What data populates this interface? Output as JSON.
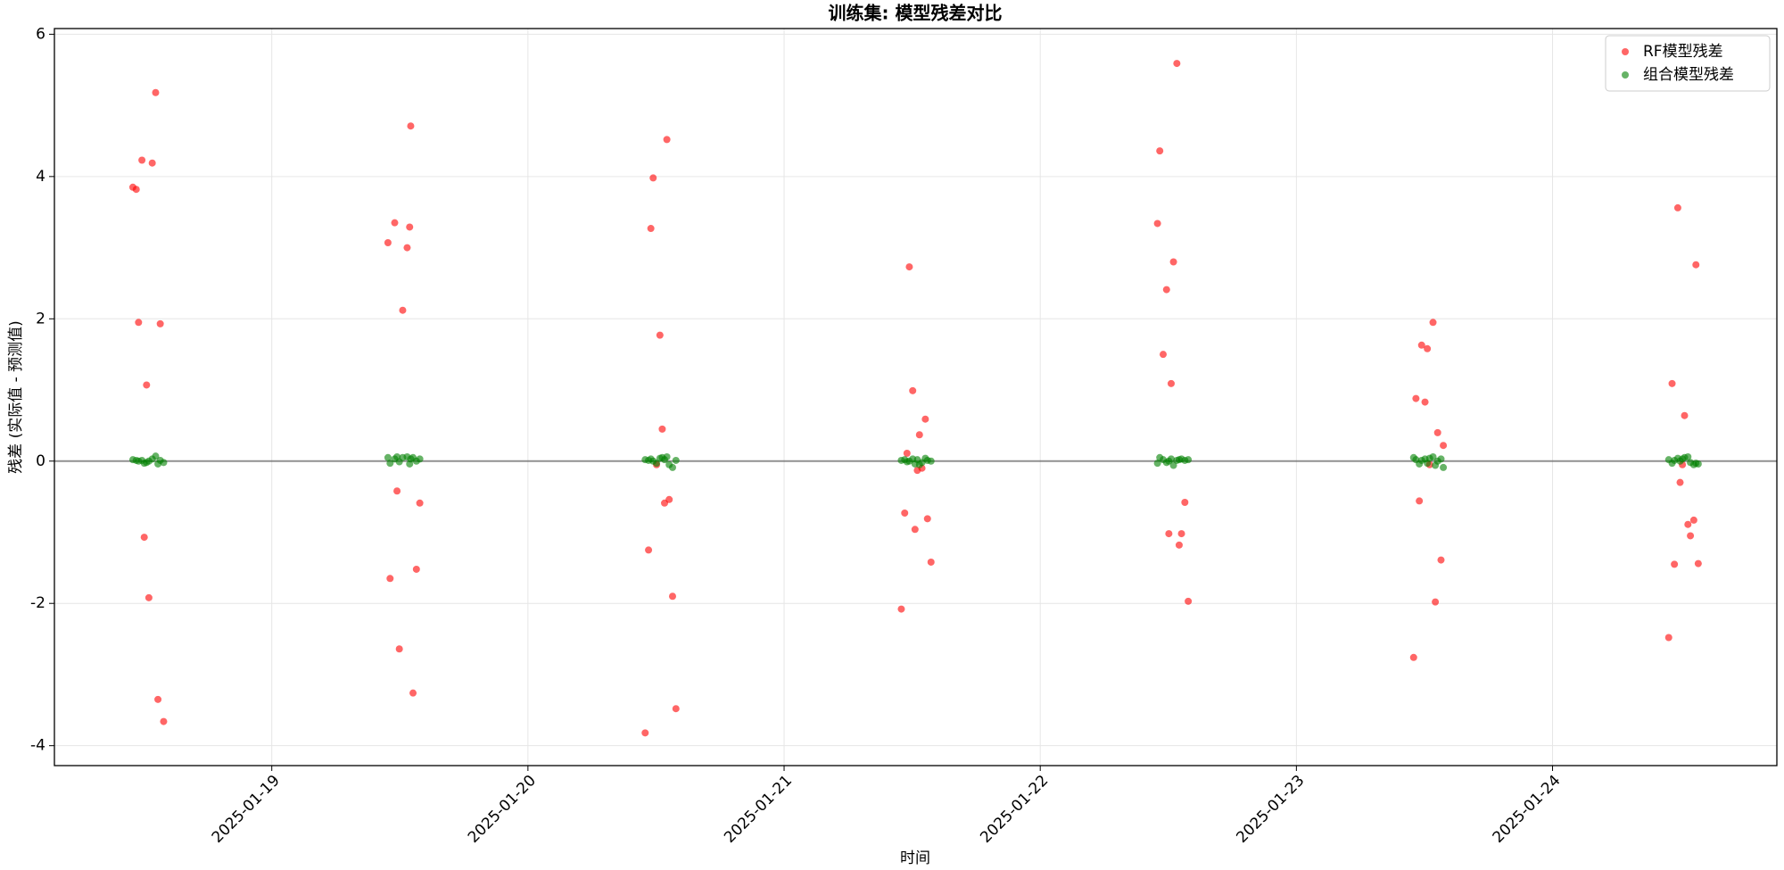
{
  "chart_data": {
    "type": "scatter",
    "title": "训练集: 模型残差对比",
    "xlabel": "时间",
    "ylabel": "残差 (实际值 - 预测值)",
    "x": [
      "2025-01-18 10:59",
      "2025-01-18 11:18",
      "2025-01-18 11:31",
      "2025-01-18 11:50",
      "2025-01-18 12:03",
      "2025-01-18 12:16",
      "2025-01-18 12:29",
      "2025-01-18 12:48",
      "2025-01-18 13:07",
      "2025-01-18 13:20",
      "2025-01-18 13:33",
      "2025-01-18 13:52",
      "2025-01-19 10:53",
      "2025-01-19 11:05",
      "2025-01-19 11:31",
      "2025-01-19 11:44",
      "2025-01-19 11:57",
      "2025-01-19 12:16",
      "2025-01-19 12:41",
      "2025-01-19 12:55",
      "2025-01-19 13:01",
      "2025-01-19 13:14",
      "2025-01-19 13:33",
      "2025-01-19 13:52",
      "2025-01-20 10:59",
      "2025-01-20 11:18",
      "2025-01-20 11:31",
      "2025-01-20 11:44",
      "2025-01-20 12:03",
      "2025-01-20 12:22",
      "2025-01-20 12:35",
      "2025-01-20 12:48",
      "2025-01-20 13:01",
      "2025-01-20 13:14",
      "2025-01-20 13:33",
      "2025-01-20 13:52",
      "2025-01-21 10:59",
      "2025-01-21 11:18",
      "2025-01-21 11:31",
      "2025-01-21 11:44",
      "2025-01-21 12:03",
      "2025-01-21 12:16",
      "2025-01-21 12:29",
      "2025-01-21 12:41",
      "2025-01-21 12:55",
      "2025-01-21 13:14",
      "2025-01-21 13:26",
      "2025-01-21 13:46",
      "2025-01-22 10:59",
      "2025-01-22 11:12",
      "2025-01-22 11:31",
      "2025-01-22 11:50",
      "2025-01-22 12:03",
      "2025-01-22 12:16",
      "2025-01-22 12:29",
      "2025-01-22 12:48",
      "2025-01-22 13:01",
      "2025-01-22 13:14",
      "2025-01-22 13:33",
      "2025-01-22 13:52",
      "2025-01-23 10:59",
      "2025-01-23 11:12",
      "2025-01-23 11:31",
      "2025-01-23 11:44",
      "2025-01-23 12:03",
      "2025-01-23 12:16",
      "2025-01-23 12:29",
      "2025-01-23 12:48",
      "2025-01-23 13:01",
      "2025-01-23 13:14",
      "2025-01-23 13:33",
      "2025-01-23 13:46",
      "2025-01-24 10:53",
      "2025-01-24 11:12",
      "2025-01-24 11:25",
      "2025-01-24 11:44",
      "2025-01-24 11:57",
      "2025-01-24 12:10",
      "2025-01-24 12:22",
      "2025-01-24 12:41",
      "2025-01-24 12:55",
      "2025-01-24 13:14",
      "2025-01-24 13:26",
      "2025-01-24 13:39"
    ],
    "series": [
      {
        "name": "RF模型残差",
        "color": "#ff0000",
        "alpha": 0.6,
        "values": [
          3.85,
          3.82,
          1.95,
          4.23,
          -1.07,
          1.07,
          -1.92,
          4.19,
          5.18,
          -3.35,
          1.93,
          -3.66,
          3.07,
          -1.65,
          3.35,
          -0.42,
          -2.64,
          2.12,
          3.0,
          3.29,
          4.71,
          -3.26,
          -1.52,
          -0.59,
          -3.82,
          -1.25,
          3.27,
          3.98,
          -0.05,
          1.77,
          0.45,
          -0.59,
          4.52,
          -0.54,
          -1.9,
          -3.48,
          -2.08,
          -0.73,
          0.11,
          2.73,
          0.99,
          -0.96,
          -0.13,
          0.37,
          -0.1,
          0.59,
          -0.81,
          -1.42,
          3.34,
          4.36,
          1.5,
          2.41,
          -1.02,
          1.09,
          2.8,
          5.59,
          -1.18,
          -1.02,
          -0.58,
          -1.97,
          -2.76,
          0.88,
          -0.56,
          1.63,
          0.83,
          1.58,
          -0.05,
          1.95,
          -1.98,
          0.4,
          -1.39,
          0.22,
          -2.48,
          1.09,
          -1.45,
          3.56,
          -0.3,
          -0.05,
          0.64,
          -0.89,
          -1.05,
          -0.83,
          2.76,
          -1.44
        ]
      },
      {
        "name": "组合模型残差",
        "color": "#008000",
        "alpha": 0.6,
        "values": [
          0.02,
          0.01,
          0.0,
          0.01,
          -0.03,
          -0.02,
          0.0,
          0.03,
          0.07,
          -0.04,
          0.01,
          -0.02,
          0.05,
          -0.03,
          0.03,
          0.06,
          -0.01,
          0.05,
          0.06,
          -0.04,
          0.03,
          0.05,
          0.0,
          0.03,
          0.02,
          0.01,
          0.03,
          0.0,
          -0.03,
          0.04,
          0.05,
          0.02,
          0.06,
          -0.05,
          -0.09,
          0.01,
          0.01,
          0.02,
          -0.01,
          0.0,
          0.03,
          -0.04,
          0.02,
          -0.05,
          -0.02,
          0.04,
          0.01,
          0.0,
          -0.03,
          0.05,
          0.02,
          -0.02,
          0.0,
          0.03,
          -0.06,
          0.01,
          0.02,
          0.03,
          0.01,
          0.02,
          0.05,
          0.02,
          -0.04,
          0.01,
          0.03,
          -0.03,
          0.04,
          0.06,
          -0.06,
          0.0,
          0.03,
          -0.09,
          0.02,
          -0.03,
          0.01,
          0.04,
          0.0,
          0.03,
          0.05,
          0.06,
          -0.02,
          -0.05,
          -0.03,
          -0.04
        ]
      }
    ],
    "xlim": [
      "2025-01-18 03:38",
      "2025-01-24 21:01"
    ],
    "xticks": [
      "2025-01-19",
      "2025-01-20",
      "2025-01-21",
      "2025-01-22",
      "2025-01-23",
      "2025-01-24"
    ],
    "ylim": [
      -4.28,
      6.08
    ],
    "yticks": [
      -4,
      -2,
      0,
      2,
      4,
      6
    ],
    "hline": 0,
    "grid": true,
    "legend": "upper right"
  }
}
